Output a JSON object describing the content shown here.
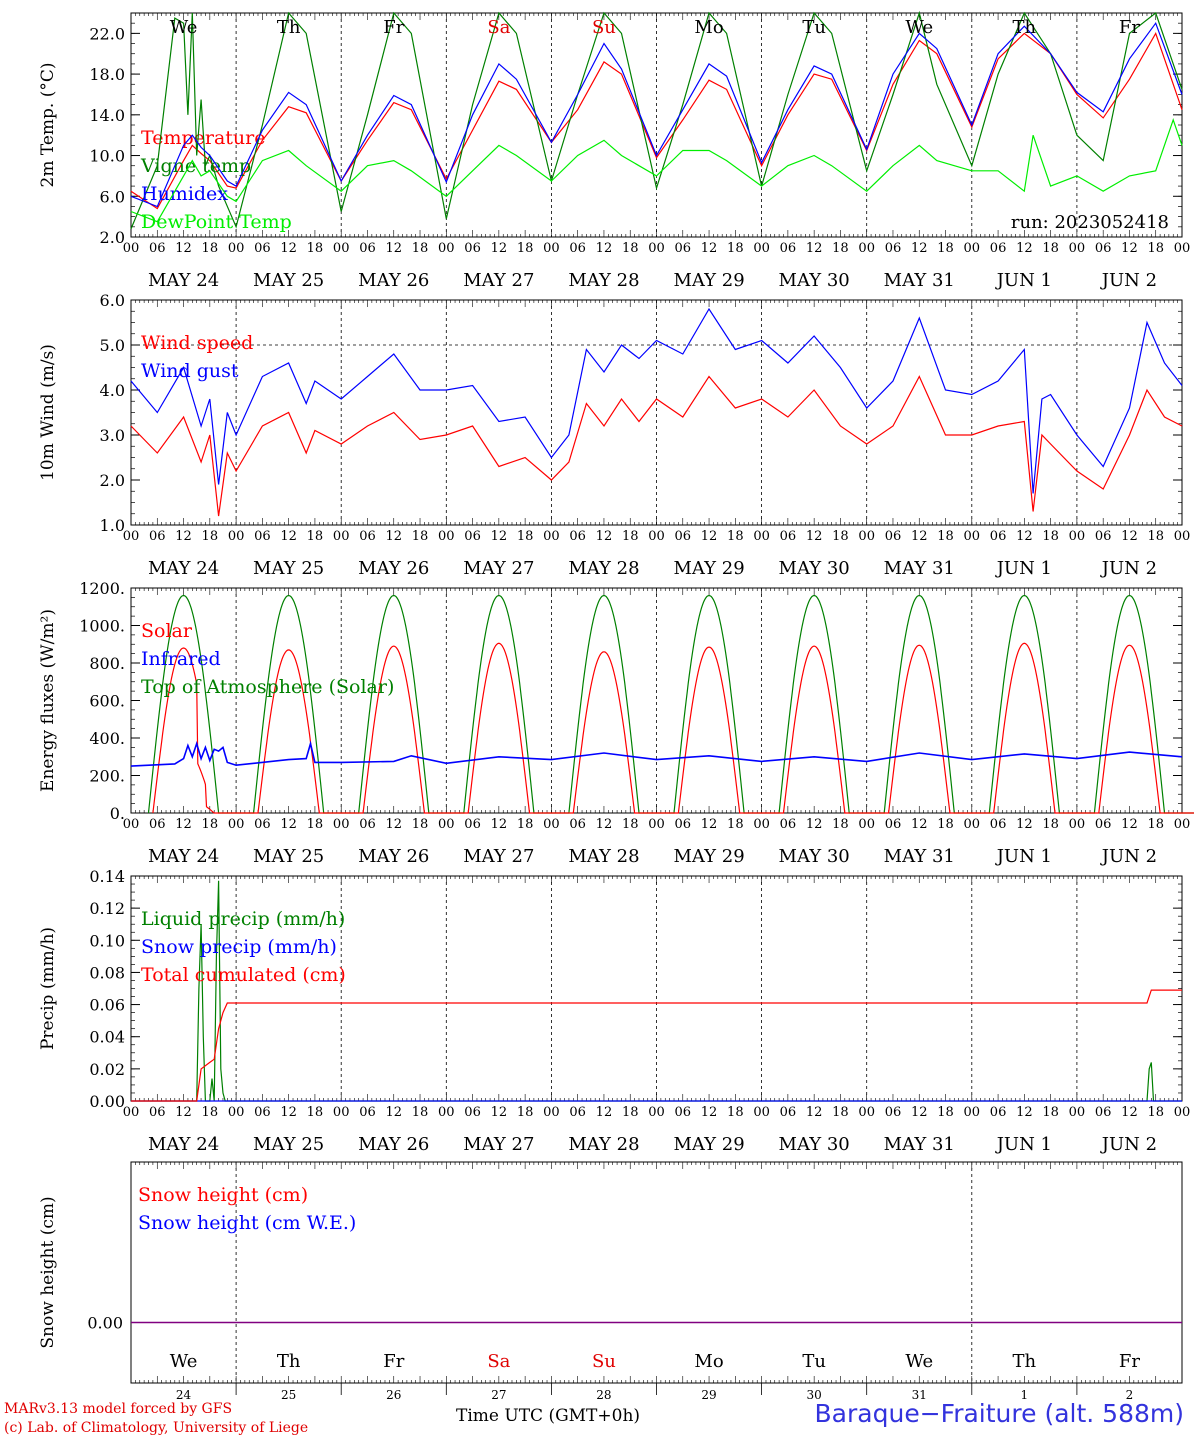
{
  "meta": {
    "run_label": "run: 2023052418",
    "credit_line1": "MARv3.13 model forced by GFS",
    "credit_line2": "(c) Lab. of Climatology, University of Liege",
    "station": "Baraque−Fraiture (alt. 588m)",
    "x_axis_title": "Time UTC (GMT+0h)",
    "x_axis_overlap": "MAY"
  },
  "axis": {
    "hour_labels": [
      "00",
      "06",
      "12",
      "18"
    ],
    "date_labels": [
      "MAY 24",
      "MAY 25",
      "MAY 26",
      "MAY 27",
      "MAY 28",
      "MAY 29",
      "MAY 30",
      "MAY 31",
      "JUN  1",
      "JUN  2"
    ],
    "weekday_labels": [
      "We",
      "Th",
      "Fr",
      "Sa",
      "Su",
      "Mo",
      "Tu",
      "We",
      "Th",
      "Fr"
    ],
    "weekday_colors": [
      "#000000",
      "#000000",
      "#000000",
      "#e00000",
      "#e00000",
      "#000000",
      "#000000",
      "#000000",
      "#000000",
      "#000000"
    ],
    "bottom_day_numbers": [
      "24",
      "25",
      "26",
      "27",
      "28",
      "29",
      "30",
      "31",
      "1",
      "2"
    ]
  },
  "colors": {
    "red": "#ff0000",
    "blue": "#0000ff",
    "dark_green": "#008000",
    "light_green": "#00ee00",
    "purple": "#800080"
  },
  "chart_data": [
    {
      "type": "line",
      "id": "temperature",
      "ylabel": "2m Temp. (°C)",
      "ylim": [
        2,
        24
      ],
      "yticks": [
        "2.0",
        "6.0",
        "10.0",
        "14.0",
        "18.0",
        "22.0"
      ],
      "x_unit": "hours since 2023-05-24 00 UTC",
      "series": [
        {
          "name": "Temperature",
          "color": "#ff0000",
          "x": [
            0,
            6,
            12,
            14,
            16,
            18,
            22,
            24,
            30,
            36,
            40,
            48,
            54,
            60,
            64,
            72,
            78,
            84,
            88,
            96,
            102,
            108,
            112,
            120,
            126,
            132,
            136,
            144,
            150,
            156,
            160,
            168,
            174,
            180,
            184,
            192,
            198,
            204,
            210,
            216,
            222,
            228,
            234,
            240
          ],
          "y": [
            6.5,
            4.8,
            9.5,
            11.0,
            10.2,
            9.5,
            7.0,
            6.8,
            11.5,
            14.8,
            14.2,
            7.5,
            11.5,
            15.2,
            14.5,
            7.7,
            12.5,
            17.3,
            16.5,
            11.3,
            14.5,
            19.2,
            18.0,
            9.8,
            13.5,
            17.4,
            16.5,
            9.0,
            14.0,
            18.0,
            17.5,
            10.5,
            17.0,
            21.3,
            20.0,
            12.8,
            19.5,
            22.0,
            20.0,
            16.0,
            13.7,
            17.5,
            22.0,
            14.5
          ]
        },
        {
          "name": "Vigne temp",
          "color": "#008000",
          "x": [
            0,
            6,
            10,
            12,
            13,
            14,
            15,
            16,
            17,
            18,
            20,
            24,
            30,
            36,
            40,
            48,
            54,
            60,
            64,
            72,
            78,
            84,
            88,
            96,
            102,
            108,
            112,
            120,
            126,
            132,
            136,
            144,
            150,
            156,
            160,
            168,
            174,
            180,
            184,
            192,
            198,
            204,
            210,
            216,
            222,
            228,
            234,
            240
          ],
          "y": [
            2.8,
            9.0,
            23.5,
            23.0,
            14.0,
            24.0,
            10.0,
            15.5,
            9.0,
            10.0,
            7.0,
            3.0,
            13.0,
            24.0,
            22.0,
            4.5,
            14.0,
            24.0,
            22.0,
            3.8,
            15.0,
            24.0,
            22.0,
            7.5,
            16.0,
            24.0,
            22.0,
            6.8,
            15.0,
            24.0,
            22.0,
            7.0,
            16.0,
            24.0,
            22.0,
            8.5,
            16.0,
            24.0,
            17.0,
            9.0,
            18.0,
            24.0,
            20.0,
            12.0,
            9.5,
            22.0,
            24.0,
            16.5
          ]
        },
        {
          "name": "Humidex",
          "color": "#0000ff",
          "x": [
            0,
            6,
            12,
            14,
            16,
            18,
            22,
            24,
            30,
            36,
            40,
            48,
            54,
            60,
            64,
            72,
            78,
            84,
            88,
            96,
            102,
            108,
            112,
            120,
            126,
            132,
            136,
            144,
            150,
            156,
            160,
            168,
            174,
            180,
            184,
            192,
            198,
            204,
            210,
            216,
            222,
            228,
            234,
            240
          ],
          "y": [
            6.0,
            5.0,
            11.0,
            12.0,
            10.8,
            10.0,
            7.5,
            7.0,
            12.5,
            16.2,
            15.0,
            7.5,
            12.0,
            15.9,
            15.0,
            7.4,
            14.0,
            19.0,
            17.5,
            11.3,
            16.0,
            21.0,
            18.5,
            10.0,
            14.5,
            19.0,
            17.8,
            9.3,
            14.5,
            18.8,
            18.0,
            10.6,
            18.0,
            22.0,
            20.5,
            13.0,
            20.0,
            22.7,
            20.0,
            16.2,
            14.3,
            19.5,
            23.0,
            16.0
          ]
        },
        {
          "name": "DewPoint Temp",
          "color": "#00ee00",
          "x": [
            0,
            6,
            12,
            14,
            16,
            18,
            22,
            24,
            30,
            36,
            40,
            48,
            54,
            60,
            64,
            72,
            78,
            84,
            88,
            96,
            102,
            108,
            112,
            120,
            126,
            132,
            136,
            144,
            150,
            156,
            160,
            168,
            174,
            180,
            184,
            192,
            198,
            204,
            206,
            210,
            216,
            222,
            228,
            234,
            238,
            240
          ],
          "y": [
            4.5,
            3.5,
            8.0,
            9.5,
            8.0,
            8.5,
            6.0,
            5.5,
            9.5,
            10.5,
            9.0,
            6.5,
            9.0,
            9.5,
            8.5,
            6.0,
            8.5,
            11.0,
            10.0,
            7.5,
            10.0,
            11.5,
            10.0,
            8.0,
            10.5,
            10.5,
            9.5,
            7.0,
            9.0,
            10.0,
            9.0,
            6.5,
            9.0,
            11.0,
            9.5,
            8.5,
            8.5,
            6.5,
            12.0,
            7.0,
            8.0,
            6.5,
            8.0,
            8.5,
            13.5,
            11.0
          ]
        }
      ]
    },
    {
      "type": "line",
      "id": "wind",
      "ylabel": "10m Wind (m/s)",
      "ylim": [
        1,
        6
      ],
      "yticks": [
        "1.0",
        "2.0",
        "3.0",
        "4.0",
        "5.0",
        "6.0"
      ],
      "reference_line": 5.0,
      "series": [
        {
          "name": "Wind speed",
          "color": "#ff0000",
          "x": [
            0,
            6,
            12,
            16,
            18,
            20,
            22,
            24,
            30,
            36,
            40,
            42,
            48,
            54,
            60,
            66,
            72,
            78,
            84,
            90,
            96,
            100,
            104,
            108,
            112,
            116,
            120,
            126,
            132,
            138,
            144,
            150,
            156,
            162,
            168,
            174,
            180,
            186,
            192,
            198,
            204,
            206,
            208,
            210,
            216,
            222,
            228,
            232,
            236,
            240
          ],
          "y": [
            3.2,
            2.6,
            3.4,
            2.4,
            3.0,
            1.2,
            2.6,
            2.2,
            3.2,
            3.5,
            2.6,
            3.1,
            2.8,
            3.2,
            3.5,
            2.9,
            3.0,
            3.2,
            2.3,
            2.5,
            2.0,
            2.4,
            3.7,
            3.2,
            3.8,
            3.3,
            3.8,
            3.4,
            4.3,
            3.6,
            3.8,
            3.4,
            4.0,
            3.2,
            2.8,
            3.2,
            4.3,
            3.0,
            3.0,
            3.2,
            3.3,
            1.3,
            3.0,
            2.8,
            2.2,
            1.8,
            3.0,
            4.0,
            3.4,
            3.2
          ]
        },
        {
          "name": "Wind gust",
          "color": "#0000ff",
          "x": [
            0,
            6,
            12,
            16,
            18,
            20,
            22,
            24,
            30,
            36,
            40,
            42,
            48,
            54,
            60,
            66,
            72,
            78,
            84,
            90,
            96,
            100,
            104,
            108,
            112,
            116,
            120,
            126,
            132,
            138,
            144,
            150,
            156,
            162,
            168,
            174,
            180,
            186,
            192,
            198,
            204,
            206,
            208,
            210,
            216,
            222,
            228,
            232,
            236,
            240
          ],
          "y": [
            4.2,
            3.5,
            4.5,
            3.2,
            3.8,
            1.9,
            3.5,
            3.0,
            4.3,
            4.6,
            3.7,
            4.2,
            3.8,
            4.3,
            4.8,
            4.0,
            4.0,
            4.1,
            3.3,
            3.4,
            2.5,
            3.0,
            4.9,
            4.4,
            5.0,
            4.7,
            5.1,
            4.8,
            5.8,
            4.9,
            5.1,
            4.6,
            5.2,
            4.5,
            3.6,
            4.2,
            5.6,
            4.0,
            3.9,
            4.2,
            4.9,
            1.7,
            3.8,
            3.9,
            3.0,
            2.3,
            3.6,
            5.5,
            4.6,
            4.1
          ]
        }
      ]
    },
    {
      "type": "line",
      "id": "energy",
      "ylabel": "Energy fluxes (W/m²)",
      "ylim": [
        0,
        1200
      ],
      "yticks": [
        "0.",
        "200.",
        "400.",
        "600.",
        "800.",
        "1000.",
        "1200."
      ],
      "solar_peaks": [
        880,
        870,
        890,
        905,
        860,
        885,
        890,
        895,
        905,
        895
      ],
      "toa_peak": 1160,
      "series": [
        {
          "name": "Solar",
          "color": "#ff0000"
        },
        {
          "name": "Infrared",
          "color": "#0000ff",
          "x": [
            0,
            10,
            12,
            13,
            14,
            15,
            16,
            17,
            18,
            19,
            20,
            21,
            22,
            24,
            36,
            40,
            41,
            42,
            48,
            60,
            64,
            72,
            84,
            96,
            108,
            120,
            132,
            144,
            156,
            168,
            180,
            192,
            204,
            216,
            228,
            240
          ],
          "y": [
            250,
            262,
            290,
            360,
            300,
            370,
            290,
            350,
            280,
            340,
            330,
            350,
            270,
            255,
            285,
            290,
            370,
            270,
            270,
            275,
            305,
            265,
            300,
            285,
            320,
            285,
            305,
            275,
            300,
            275,
            320,
            285,
            315,
            290,
            325,
            300
          ]
        },
        {
          "name": "Top of Atmosphere (Solar)",
          "color": "#008000"
        }
      ]
    },
    {
      "type": "line",
      "id": "precip",
      "ylabel": "Precip (mm/h)",
      "ylim": [
        0,
        0.14
      ],
      "yticks": [
        "0.00",
        "0.02",
        "0.04",
        "0.06",
        "0.08",
        "0.10",
        "0.12",
        "0.14"
      ],
      "series": [
        {
          "name": "Liquid precip (mm/h)",
          "color": "#008000",
          "x": [
            0,
            15,
            15.5,
            16,
            16.5,
            17,
            18,
            18.5,
            19,
            19.5,
            20,
            20.5,
            21,
            21.5,
            22,
            24,
            232,
            232.5,
            233,
            233.5,
            240
          ],
          "y": [
            0,
            0,
            0.07,
            0.11,
            0.04,
            0,
            0,
            0.014,
            0,
            0.09,
            0.137,
            0.02,
            0.005,
            0,
            0,
            0,
            0,
            0.02,
            0.024,
            0,
            0
          ]
        },
        {
          "name": "Snow precip (mm/h)",
          "color": "#0000ff",
          "x": [
            0,
            240
          ],
          "y": [
            0,
            0
          ]
        },
        {
          "name": "Total cumulated (cm)",
          "color": "#ff0000",
          "x": [
            0,
            15,
            16,
            18,
            19,
            20,
            21,
            22,
            232,
            233,
            240
          ],
          "y": [
            0,
            0,
            0.02,
            0.024,
            0.026,
            0.045,
            0.055,
            0.061,
            0.061,
            0.069,
            0.069
          ]
        }
      ]
    },
    {
      "type": "line",
      "id": "snow",
      "ylabel": "Snow height (cm)",
      "yticks": [
        "0.00"
      ],
      "series": [
        {
          "name": "Snow height (cm)",
          "color": "#ff0000",
          "x": [
            0,
            240
          ],
          "y": [
            0,
            0
          ]
        },
        {
          "name": "Snow height (cm W.E.)",
          "color": "#0000ff",
          "x": [
            0,
            240
          ],
          "y": [
            0,
            0
          ]
        }
      ]
    }
  ]
}
